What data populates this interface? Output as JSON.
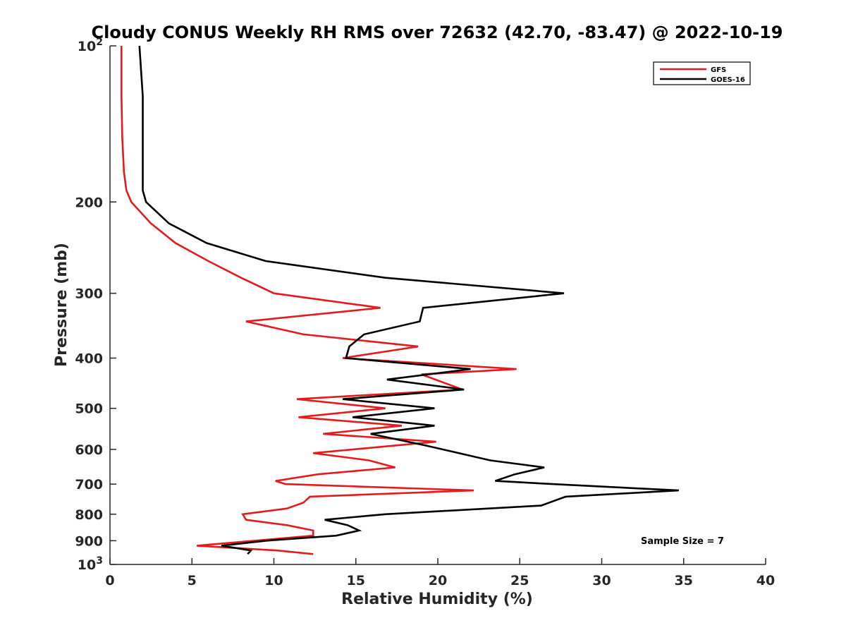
{
  "chart_data": {
    "type": "line",
    "title": "Cloudy CONUS Weekly RH RMS over 72632 (42.70, -83.47) @ 2022-10-19",
    "xlabel": "Relative Humidity (%)",
    "ylabel": "Pressure (mb)",
    "xlim": [
      0,
      40
    ],
    "ylim": [
      1000,
      100
    ],
    "yscale": "log",
    "x_ticks": [
      "0",
      "5",
      "10",
      "15",
      "20",
      "25",
      "30",
      "35",
      "40"
    ],
    "y_ticks": [
      {
        "value": 100,
        "label": "10",
        "sup": "2"
      },
      {
        "value": 200,
        "label": "200"
      },
      {
        "value": 300,
        "label": "300"
      },
      {
        "value": 400,
        "label": "400"
      },
      {
        "value": 500,
        "label": "500"
      },
      {
        "value": 600,
        "label": "600"
      },
      {
        "value": 700,
        "label": "700"
      },
      {
        "value": 800,
        "label": "800"
      },
      {
        "value": 900,
        "label": "900"
      },
      {
        "value": 1000,
        "label": "10",
        "sup": "3"
      }
    ],
    "grid": false,
    "legend_position": "top-right",
    "annotation": "Sample Size = 7",
    "series": [
      {
        "name": "GFS",
        "color": "#e41a1c",
        "points": [
          [
            0.7,
            100
          ],
          [
            0.7,
            125
          ],
          [
            0.75,
            150
          ],
          [
            0.85,
            175
          ],
          [
            1.0,
            190
          ],
          [
            1.3,
            200
          ],
          [
            2.5,
            220
          ],
          [
            4.0,
            240
          ],
          [
            6.0,
            260
          ],
          [
            8.0,
            280
          ],
          [
            10.0,
            300
          ],
          [
            16.5,
            320
          ],
          [
            8.3,
            340
          ],
          [
            11.8,
            360
          ],
          [
            18.8,
            380
          ],
          [
            14.2,
            400
          ],
          [
            24.8,
            420
          ],
          [
            19.0,
            430
          ],
          [
            21.5,
            460
          ],
          [
            11.4,
            480
          ],
          [
            16.8,
            500
          ],
          [
            11.5,
            520
          ],
          [
            17.8,
            540
          ],
          [
            13.0,
            560
          ],
          [
            19.9,
            580
          ],
          [
            12.4,
            610
          ],
          [
            15.8,
            630
          ],
          [
            17.4,
            650
          ],
          [
            12.7,
            670
          ],
          [
            10.1,
            690
          ],
          [
            10.7,
            700
          ],
          [
            22.2,
            720
          ],
          [
            12.2,
            740
          ],
          [
            11.8,
            760
          ],
          [
            10.8,
            780
          ],
          [
            8.1,
            800
          ],
          [
            8.3,
            820
          ],
          [
            10.8,
            840
          ],
          [
            12.4,
            860
          ],
          [
            12.4,
            880
          ],
          [
            5.3,
            920
          ],
          [
            10.2,
            940
          ],
          [
            12.4,
            955
          ]
        ]
      },
      {
        "name": "GOES-16",
        "color": "#000000",
        "points": [
          [
            1.8,
            100
          ],
          [
            2.0,
            125
          ],
          [
            2.0,
            150
          ],
          [
            2.0,
            175
          ],
          [
            2.0,
            190
          ],
          [
            2.2,
            200
          ],
          [
            3.6,
            220
          ],
          [
            5.9,
            240
          ],
          [
            9.5,
            260
          ],
          [
            16.8,
            280
          ],
          [
            27.7,
            300
          ],
          [
            19.1,
            320
          ],
          [
            18.9,
            340
          ],
          [
            15.5,
            360
          ],
          [
            14.6,
            380
          ],
          [
            14.4,
            400
          ],
          [
            22.0,
            420
          ],
          [
            16.9,
            440
          ],
          [
            21.6,
            460
          ],
          [
            14.2,
            480
          ],
          [
            19.8,
            500
          ],
          [
            14.8,
            520
          ],
          [
            19.8,
            540
          ],
          [
            15.9,
            560
          ],
          [
            19.3,
            590
          ],
          [
            23.2,
            630
          ],
          [
            26.5,
            650
          ],
          [
            24.7,
            670
          ],
          [
            23.5,
            690
          ],
          [
            27.0,
            700
          ],
          [
            34.7,
            720
          ],
          [
            27.8,
            740
          ],
          [
            26.3,
            770
          ],
          [
            16.8,
            800
          ],
          [
            13.1,
            820
          ],
          [
            14.5,
            840
          ],
          [
            15.2,
            860
          ],
          [
            13.8,
            880
          ],
          [
            9.5,
            900
          ],
          [
            6.8,
            920
          ],
          [
            8.6,
            940
          ],
          [
            8.4,
            955
          ]
        ]
      }
    ]
  }
}
